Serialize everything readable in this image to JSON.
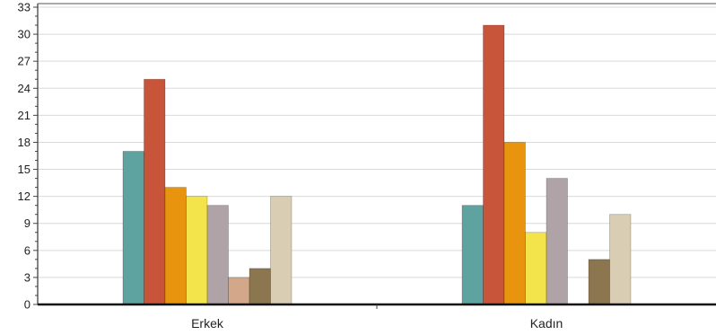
{
  "chart_data": {
    "type": "bar",
    "categories": [
      "Erkek",
      "Kadın"
    ],
    "series": [
      {
        "values": [
          17,
          11
        ],
        "color": "#5fa3a0"
      },
      {
        "values": [
          25,
          31
        ],
        "color": "#c8553a"
      },
      {
        "values": [
          13,
          18
        ],
        "color": "#e8940f"
      },
      {
        "values": [
          12,
          8
        ],
        "color": "#f4e44c"
      },
      {
        "values": [
          11,
          14
        ],
        "color": "#b0a3a8"
      },
      {
        "values": [
          3,
          0
        ],
        "color": "#d3a88a"
      },
      {
        "values": [
          4,
          5
        ],
        "color": "#8b7650"
      },
      {
        "values": [
          12,
          10
        ],
        "color": "#d9cdb4"
      }
    ],
    "ylim": [
      0,
      33
    ],
    "yticks": [
      0,
      3,
      6,
      9,
      12,
      15,
      18,
      21,
      24,
      27,
      30,
      33
    ],
    "minor_step": 1,
    "grid": true,
    "legend": "none"
  }
}
